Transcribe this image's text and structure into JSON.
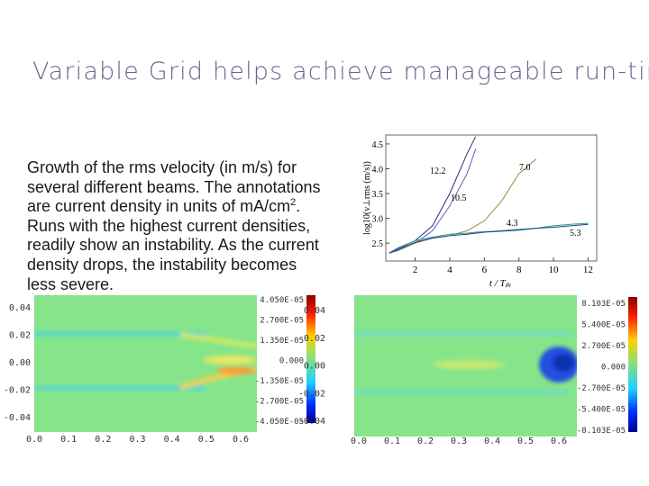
{
  "title": "Variable Grid helps achieve manageable run-tim",
  "body": {
    "lines": [
      "Growth of the rms velocity (in m/s) for",
      "several different beams. The annotations",
      null,
      "Runs with the highest current densities,",
      "readily show an instability. As the current",
      "density drops, the instability becomes",
      "less severe."
    ],
    "line3": {
      "text": "are current density in units of mA/cm",
      "sup": "2",
      "end": "."
    }
  },
  "chart_data": {
    "type": "line",
    "y_label": "log10(v⊥rms (m/s))",
    "x_label": "t / Tₚᵢ",
    "x": [
      0.5,
      1,
      2,
      3,
      4,
      5,
      5.5,
      6,
      7,
      8,
      9,
      10,
      11,
      12
    ],
    "series": [
      {
        "name": "12.2",
        "color": "#2a2f7a",
        "values": [
          2.3,
          2.4,
          2.55,
          2.85,
          3.5,
          4.3,
          4.65,
          null,
          null,
          null,
          null,
          null,
          null,
          null
        ]
      },
      {
        "name": "10.5",
        "color": "#5a5fc0",
        "values": [
          2.3,
          2.38,
          2.5,
          2.75,
          3.25,
          3.9,
          4.4,
          null,
          null,
          null,
          null,
          null,
          null,
          null
        ]
      },
      {
        "name": "7.0",
        "color": "#9a8a40",
        "values": [
          2.3,
          2.35,
          2.5,
          2.6,
          2.65,
          2.75,
          2.85,
          2.95,
          3.35,
          3.9,
          4.2,
          null,
          null,
          null
        ]
      },
      {
        "name": "4.3",
        "color": "#2a9a8a",
        "values": [
          2.3,
          2.38,
          2.55,
          2.62,
          2.68,
          2.7,
          2.72,
          2.73,
          2.75,
          2.78,
          2.8,
          2.85,
          2.88,
          2.9
        ]
      },
      {
        "name": "5.3",
        "color": "#1f3f8a",
        "values": [
          2.3,
          2.36,
          2.52,
          2.6,
          2.65,
          2.68,
          2.7,
          2.72,
          2.74,
          2.76,
          2.8,
          2.82,
          2.85,
          2.88
        ]
      }
    ],
    "xlim": [
      0.3,
      12.5
    ],
    "ylim": [
      2.14,
      4.68
    ],
    "xticks": [
      2,
      4,
      6,
      8,
      10,
      12
    ],
    "yticks": [
      2.5,
      {
        "value": 3.0,
        "label": "3.0"
      },
      3.5,
      {
        "value": 4.0,
        "label": "4.0"
      },
      4.5
    ]
  },
  "images": [
    {
      "yticks": [
        "0.04",
        "0.02",
        "0.00",
        "-0.02",
        "-0.04"
      ],
      "xticks": [
        "0.0",
        "0.1",
        "0.2",
        "0.3",
        "0.4",
        "0.5",
        "0.6"
      ],
      "colorbar": [
        "4.050E-05",
        "2.700E-05",
        "1.350E-05",
        "0.000",
        "-1.350E-05",
        "-2.700E-05",
        "-4.050E-05"
      ]
    },
    {
      "yticks": [
        "0.04",
        "0.02",
        "0.00",
        "-0.02",
        "-0.04"
      ],
      "xticks": [
        "0.0",
        "0.1",
        "0.2",
        "0.3",
        "0.4",
        "0.5",
        "0.6"
      ],
      "colorbar": [
        "8.103E-05",
        "5.400E-05",
        "2.700E-05",
        "0.000",
        "-2.700E-05",
        "-5.400E-05",
        "-8.103E-05"
      ]
    }
  ]
}
